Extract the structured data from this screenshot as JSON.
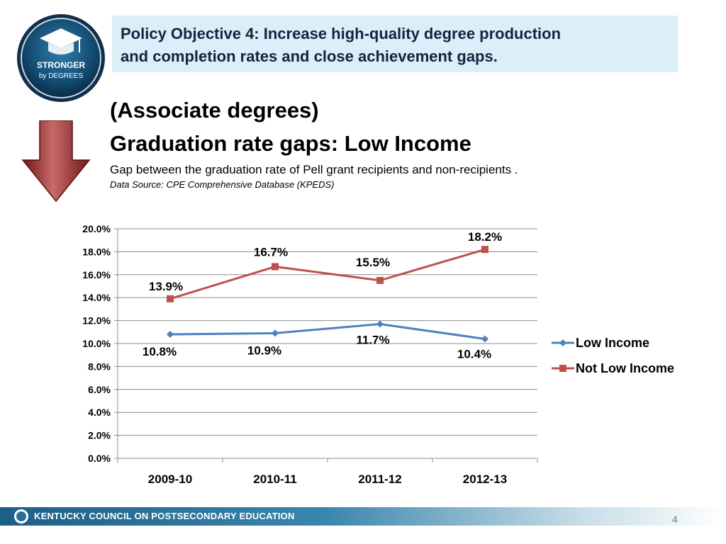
{
  "logo": {
    "line1": "STRONGER",
    "line2": "by DEGREES"
  },
  "banner": {
    "line1": "Policy Objective 4: Increase high-quality degree production",
    "line2": "and completion rates and close achievement gaps."
  },
  "heading": {
    "subtitle": "(Associate degrees)",
    "title": "Graduation rate gaps:  Low Income",
    "description": "Gap between the graduation rate of Pell grant recipients and non-recipients .",
    "source": "Data Source: CPE Comprehensive Database (KPEDS)"
  },
  "chart_data": {
    "type": "line",
    "title": "",
    "xlabel": "",
    "ylabel": "",
    "categories": [
      "2009-10",
      "2010-11",
      "2011-12",
      "2012-13"
    ],
    "ylim": [
      0,
      20
    ],
    "y_ticks": [
      "0.0%",
      "2.0%",
      "4.0%",
      "6.0%",
      "8.0%",
      "10.0%",
      "12.0%",
      "14.0%",
      "16.0%",
      "18.0%",
      "20.0%"
    ],
    "grid": true,
    "legend": "right",
    "series": [
      {
        "name": "Low Income",
        "color": "#4f81bd",
        "marker": "diamond",
        "values": [
          10.8,
          10.9,
          11.7,
          10.4
        ],
        "labels": [
          "10.8%",
          "10.9%",
          "11.7%",
          "10.4%"
        ]
      },
      {
        "name": "Not Low Income",
        "color": "#c0504d",
        "marker": "square",
        "values": [
          13.9,
          16.7,
          15.5,
          18.2
        ],
        "labels": [
          "13.9%",
          "16.7%",
          "15.5%",
          "18.2%"
        ]
      }
    ]
  },
  "footer": {
    "org": "KENTUCKY COUNCIL ON POSTSECONDARY EDUCATION",
    "page": "4"
  }
}
